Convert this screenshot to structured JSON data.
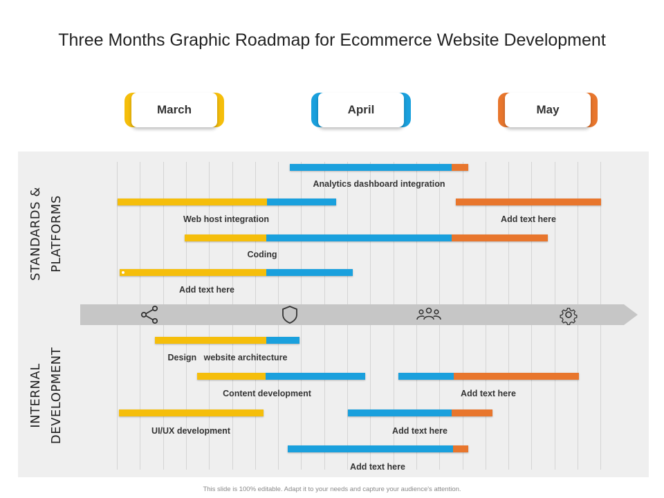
{
  "title": "Three Months Graphic Roadmap for Ecommerce Website Development",
  "months": [
    {
      "label": "March",
      "color": "#F5BE0B"
    },
    {
      "label": "April",
      "color": "#1AA0DD"
    },
    {
      "label": "May",
      "color": "#E8762D"
    }
  ],
  "sections": {
    "top": "STANDARDS & PLATFORMS",
    "bottom": "INTERNAL DEVELOPMENT"
  },
  "tasks": {
    "analytics": "Analytics dashboard integration",
    "web_host": "Web host integration",
    "top_right": "Add text here",
    "coding": "Coding",
    "top_add": "Add text here",
    "design": "Design   website architecture",
    "content": "Content development",
    "mid_right": "Add text here",
    "uiux": "UI/UX development",
    "low_right": "Add text here",
    "bottom": "Add text here"
  },
  "icons": [
    "share-icon",
    "shield-icon",
    "team-icon",
    "gear-icon"
  ],
  "colors": {
    "yellow": "#F5BE0B",
    "blue": "#1AA0DD",
    "orange": "#E8762D",
    "arrow": "#C8C8C8"
  },
  "footer": "This slide is 100% editable. Adapt it to your needs and capture your audience's attention."
}
